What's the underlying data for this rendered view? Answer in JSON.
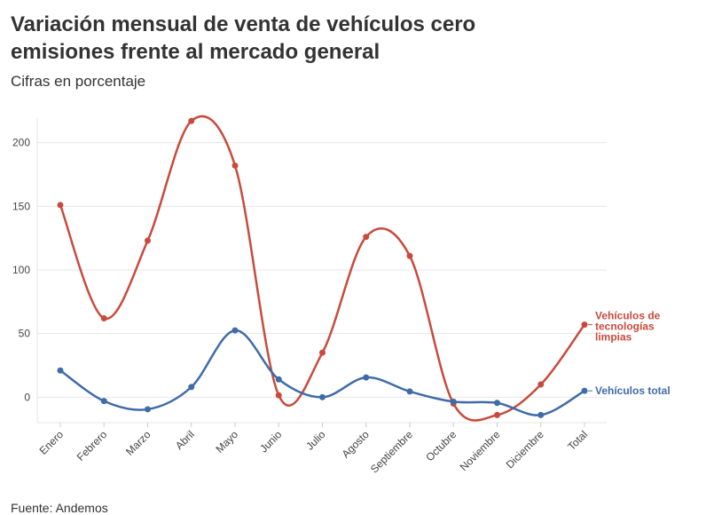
{
  "chart_data": {
    "type": "line",
    "title": "Variación mensual de venta de vehículos cero emisiones frente al mercado general",
    "subtitle": "Cifras en porcentaje",
    "source": "Fuente: Andemos",
    "categories": [
      "Enero",
      "Febrero",
      "Marzo",
      "Abril",
      "Mayo",
      "Junio",
      "Julio",
      "Agosto",
      "Septiembre",
      "Octubre",
      "Noviembre",
      "Diciembre",
      "Total"
    ],
    "series": [
      {
        "name": "Vehículos de tecnologías limpias",
        "label_lines": [
          "Vehículos de",
          "tecnologías",
          "limpias"
        ],
        "color": "#c94a3d",
        "values": [
          151,
          62,
          123,
          217,
          182,
          1.5,
          35,
          126,
          111,
          -5,
          -14,
          10,
          57
        ]
      },
      {
        "name": "Vehículos total",
        "label_lines": [
          "Vehículos total"
        ],
        "color": "#3f6ba8",
        "values": [
          21,
          -3,
          -9.5,
          8,
          52.5,
          14,
          0,
          15.5,
          4.5,
          -3.5,
          -4.5,
          -14,
          5
        ]
      }
    ],
    "ylim": [
      -20,
      220
    ],
    "yticks": [
      0,
      50,
      100,
      150,
      200
    ],
    "grid": true,
    "legend": "inline-right"
  }
}
